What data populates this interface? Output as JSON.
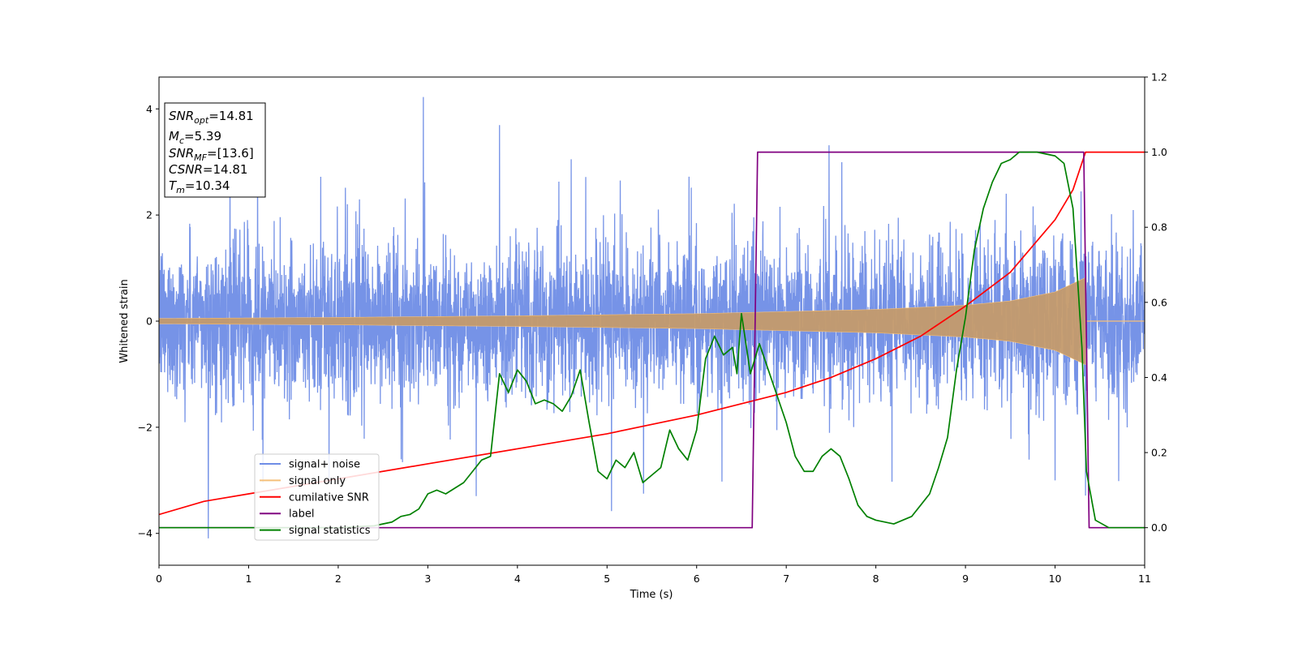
{
  "chart_data": {
    "type": "line",
    "title": "",
    "xlabel": "Time (s)",
    "ylabel": "Whitened strain",
    "x_range": [
      0,
      11
    ],
    "y_left_range": [
      -4.6,
      4.6
    ],
    "y_right_range": [
      -0.1,
      1.2
    ],
    "x_ticks": [
      "0",
      "1",
      "2",
      "3",
      "4",
      "5",
      "6",
      "7",
      "8",
      "9",
      "10",
      "11"
    ],
    "y_left_ticks": [
      "4",
      "2",
      "0",
      "−2",
      "−4"
    ],
    "y_right_ticks": [
      "1.2",
      "1.0",
      "0.8",
      "0.6",
      "0.4",
      "0.2",
      "0.0"
    ],
    "y_left_tick_values": [
      4,
      2,
      0,
      -2,
      -4
    ],
    "y_right_tick_values": [
      1.2,
      1.0,
      0.8,
      0.6,
      0.4,
      0.2,
      0.0
    ],
    "grid": false,
    "legend_position": "lower-left",
    "stats_box": {
      "snr_opt": {
        "label": "SNR",
        "sub": "opt",
        "value": "=14.81"
      },
      "mc": {
        "label": "M",
        "sub": "c",
        "value": "=5.39"
      },
      "snr_mf": {
        "label": "SNR",
        "sub": "MF",
        "value": "=[13.6]"
      },
      "csnr": {
        "label": "CSNR",
        "sub": "",
        "value": "=14.81"
      },
      "tm": {
        "label": "T",
        "sub": "m",
        "value": "=10.34"
      }
    },
    "series": [
      {
        "name": "signal+ noise",
        "color": "#6f8de6",
        "axis": "left",
        "description": "noisy whitened strain, approx. within ±2.5 with spikes up to 4.15 and down to -4.15",
        "envelope_typical": 2.3,
        "spikes": [
          [
            0.55,
            -4.15
          ],
          [
            2.95,
            4.15
          ],
          [
            3.8,
            3.6
          ],
          [
            5.05,
            -3.7
          ],
          [
            7.62,
            3.2
          ],
          [
            4.6,
            3.1
          ],
          [
            1.1,
            3.0
          ]
        ]
      },
      {
        "name": "signal only",
        "color": "#f5c07a",
        "axis": "left",
        "description": "chirp signal with amplitude growing from 0.05 at t=0 to about 0.8 at t=10.34, zero after merger",
        "amplitude_points": [
          [
            0,
            0.05
          ],
          [
            2,
            0.07
          ],
          [
            4,
            0.1
          ],
          [
            6,
            0.14
          ],
          [
            8,
            0.22
          ],
          [
            9,
            0.3
          ],
          [
            9.5,
            0.38
          ],
          [
            10,
            0.55
          ],
          [
            10.34,
            0.82
          ]
        ]
      },
      {
        "name": "cumilative SNR",
        "color": "#ff0000",
        "axis": "right",
        "points": [
          [
            0,
            0.035
          ],
          [
            0.5,
            0.07
          ],
          [
            1,
            0.09
          ],
          [
            2,
            0.13
          ],
          [
            3,
            0.17
          ],
          [
            4,
            0.21
          ],
          [
            5,
            0.25
          ],
          [
            6,
            0.3
          ],
          [
            7,
            0.36
          ],
          [
            7.5,
            0.4
          ],
          [
            8,
            0.45
          ],
          [
            8.5,
            0.51
          ],
          [
            9,
            0.59
          ],
          [
            9.5,
            0.68
          ],
          [
            10,
            0.82
          ],
          [
            10.2,
            0.9
          ],
          [
            10.34,
            1.0
          ],
          [
            11,
            1.0
          ]
        ]
      },
      {
        "name": "label",
        "color": "#800080",
        "axis": "right",
        "points": [
          [
            0,
            0
          ],
          [
            6.62,
            0
          ],
          [
            6.68,
            1
          ],
          [
            10.32,
            1
          ],
          [
            10.38,
            0
          ],
          [
            11,
            0
          ]
        ]
      },
      {
        "name": "signal statistics",
        "color": "#008000",
        "axis": "right",
        "points": [
          [
            0,
            0.0
          ],
          [
            0.5,
            0.0
          ],
          [
            1,
            0.0
          ],
          [
            1.5,
            0.0
          ],
          [
            2.0,
            0.0
          ],
          [
            2.4,
            0.005
          ],
          [
            2.6,
            0.015
          ],
          [
            2.7,
            0.03
          ],
          [
            2.8,
            0.035
          ],
          [
            2.9,
            0.05
          ],
          [
            3.0,
            0.09
          ],
          [
            3.1,
            0.1
          ],
          [
            3.2,
            0.09
          ],
          [
            3.4,
            0.12
          ],
          [
            3.5,
            0.15
          ],
          [
            3.6,
            0.18
          ],
          [
            3.7,
            0.19
          ],
          [
            3.8,
            0.41
          ],
          [
            3.9,
            0.36
          ],
          [
            4.0,
            0.42
          ],
          [
            4.1,
            0.39
          ],
          [
            4.2,
            0.33
          ],
          [
            4.3,
            0.34
          ],
          [
            4.4,
            0.33
          ],
          [
            4.5,
            0.31
          ],
          [
            4.6,
            0.35
          ],
          [
            4.7,
            0.42
          ],
          [
            4.8,
            0.28
          ],
          [
            4.9,
            0.15
          ],
          [
            5.0,
            0.13
          ],
          [
            5.1,
            0.18
          ],
          [
            5.2,
            0.16
          ],
          [
            5.3,
            0.2
          ],
          [
            5.4,
            0.12
          ],
          [
            5.5,
            0.14
          ],
          [
            5.6,
            0.16
          ],
          [
            5.7,
            0.26
          ],
          [
            5.8,
            0.21
          ],
          [
            5.9,
            0.18
          ],
          [
            6.0,
            0.26
          ],
          [
            6.1,
            0.45
          ],
          [
            6.2,
            0.51
          ],
          [
            6.3,
            0.46
          ],
          [
            6.4,
            0.48
          ],
          [
            6.45,
            0.41
          ],
          [
            6.5,
            0.57
          ],
          [
            6.6,
            0.41
          ],
          [
            6.7,
            0.49
          ],
          [
            6.8,
            0.42
          ],
          [
            6.9,
            0.35
          ],
          [
            7.0,
            0.28
          ],
          [
            7.1,
            0.19
          ],
          [
            7.2,
            0.15
          ],
          [
            7.3,
            0.15
          ],
          [
            7.4,
            0.19
          ],
          [
            7.5,
            0.21
          ],
          [
            7.6,
            0.19
          ],
          [
            7.7,
            0.13
          ],
          [
            7.8,
            0.06
          ],
          [
            7.9,
            0.03
          ],
          [
            8.0,
            0.02
          ],
          [
            8.2,
            0.01
          ],
          [
            8.3,
            0.02
          ],
          [
            8.4,
            0.03
          ],
          [
            8.5,
            0.06
          ],
          [
            8.6,
            0.09
          ],
          [
            8.7,
            0.16
          ],
          [
            8.8,
            0.24
          ],
          [
            8.9,
            0.42
          ],
          [
            9.0,
            0.56
          ],
          [
            9.1,
            0.74
          ],
          [
            9.2,
            0.85
          ],
          [
            9.3,
            0.92
          ],
          [
            9.4,
            0.97
          ],
          [
            9.5,
            0.98
          ],
          [
            9.6,
            1.0
          ],
          [
            9.8,
            1.0
          ],
          [
            10.0,
            0.99
          ],
          [
            10.1,
            0.97
          ],
          [
            10.2,
            0.85
          ],
          [
            10.3,
            0.48
          ],
          [
            10.35,
            0.15
          ],
          [
            10.45,
            0.02
          ],
          [
            10.6,
            0.0
          ],
          [
            11,
            0.0
          ]
        ]
      }
    ]
  }
}
